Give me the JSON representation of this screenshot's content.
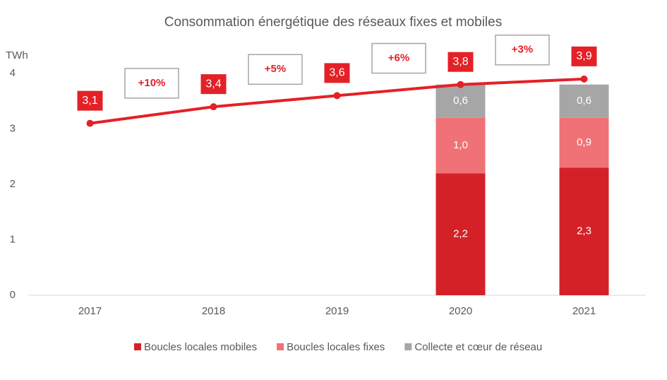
{
  "chart_data": {
    "type": "bar",
    "stacked": true,
    "title": "Consommation énergétique des réseaux fixes et mobiles",
    "y_label": "TWh",
    "categories": [
      "2017",
      "2018",
      "2019",
      "2020",
      "2021"
    ],
    "series": [
      {
        "name": "Boucles locales mobiles",
        "color": "#d42127",
        "values": [
          null,
          null,
          null,
          2.2,
          2.3
        ],
        "value_labels": [
          null,
          null,
          null,
          "2,2",
          "2,3"
        ]
      },
      {
        "name": "Boucles locales fixes",
        "color": "#f07276",
        "values": [
          null,
          null,
          null,
          1.0,
          0.9
        ],
        "value_labels": [
          null,
          null,
          null,
          "1,0",
          "0,9"
        ]
      },
      {
        "name": "Collecte et cœur de réseau",
        "color": "#a6a6a6",
        "values": [
          null,
          null,
          null,
          0.6,
          0.6
        ],
        "value_labels": [
          null,
          null,
          null,
          "0,6",
          "0,6"
        ]
      }
    ],
    "line": {
      "type": "line",
      "color": "#e42127",
      "values": [
        3.1,
        3.4,
        3.6,
        3.8,
        3.9
      ],
      "value_labels": [
        "3,1",
        "3,4",
        "3,6",
        "3,8",
        "3,9"
      ]
    },
    "annotations": [
      "+10%",
      "+5%",
      "+6%",
      "+3%"
    ],
    "ylim": [
      0,
      4
    ],
    "yticks": [
      0,
      1,
      2,
      3,
      4
    ],
    "grid": false,
    "legend": "bottom"
  }
}
